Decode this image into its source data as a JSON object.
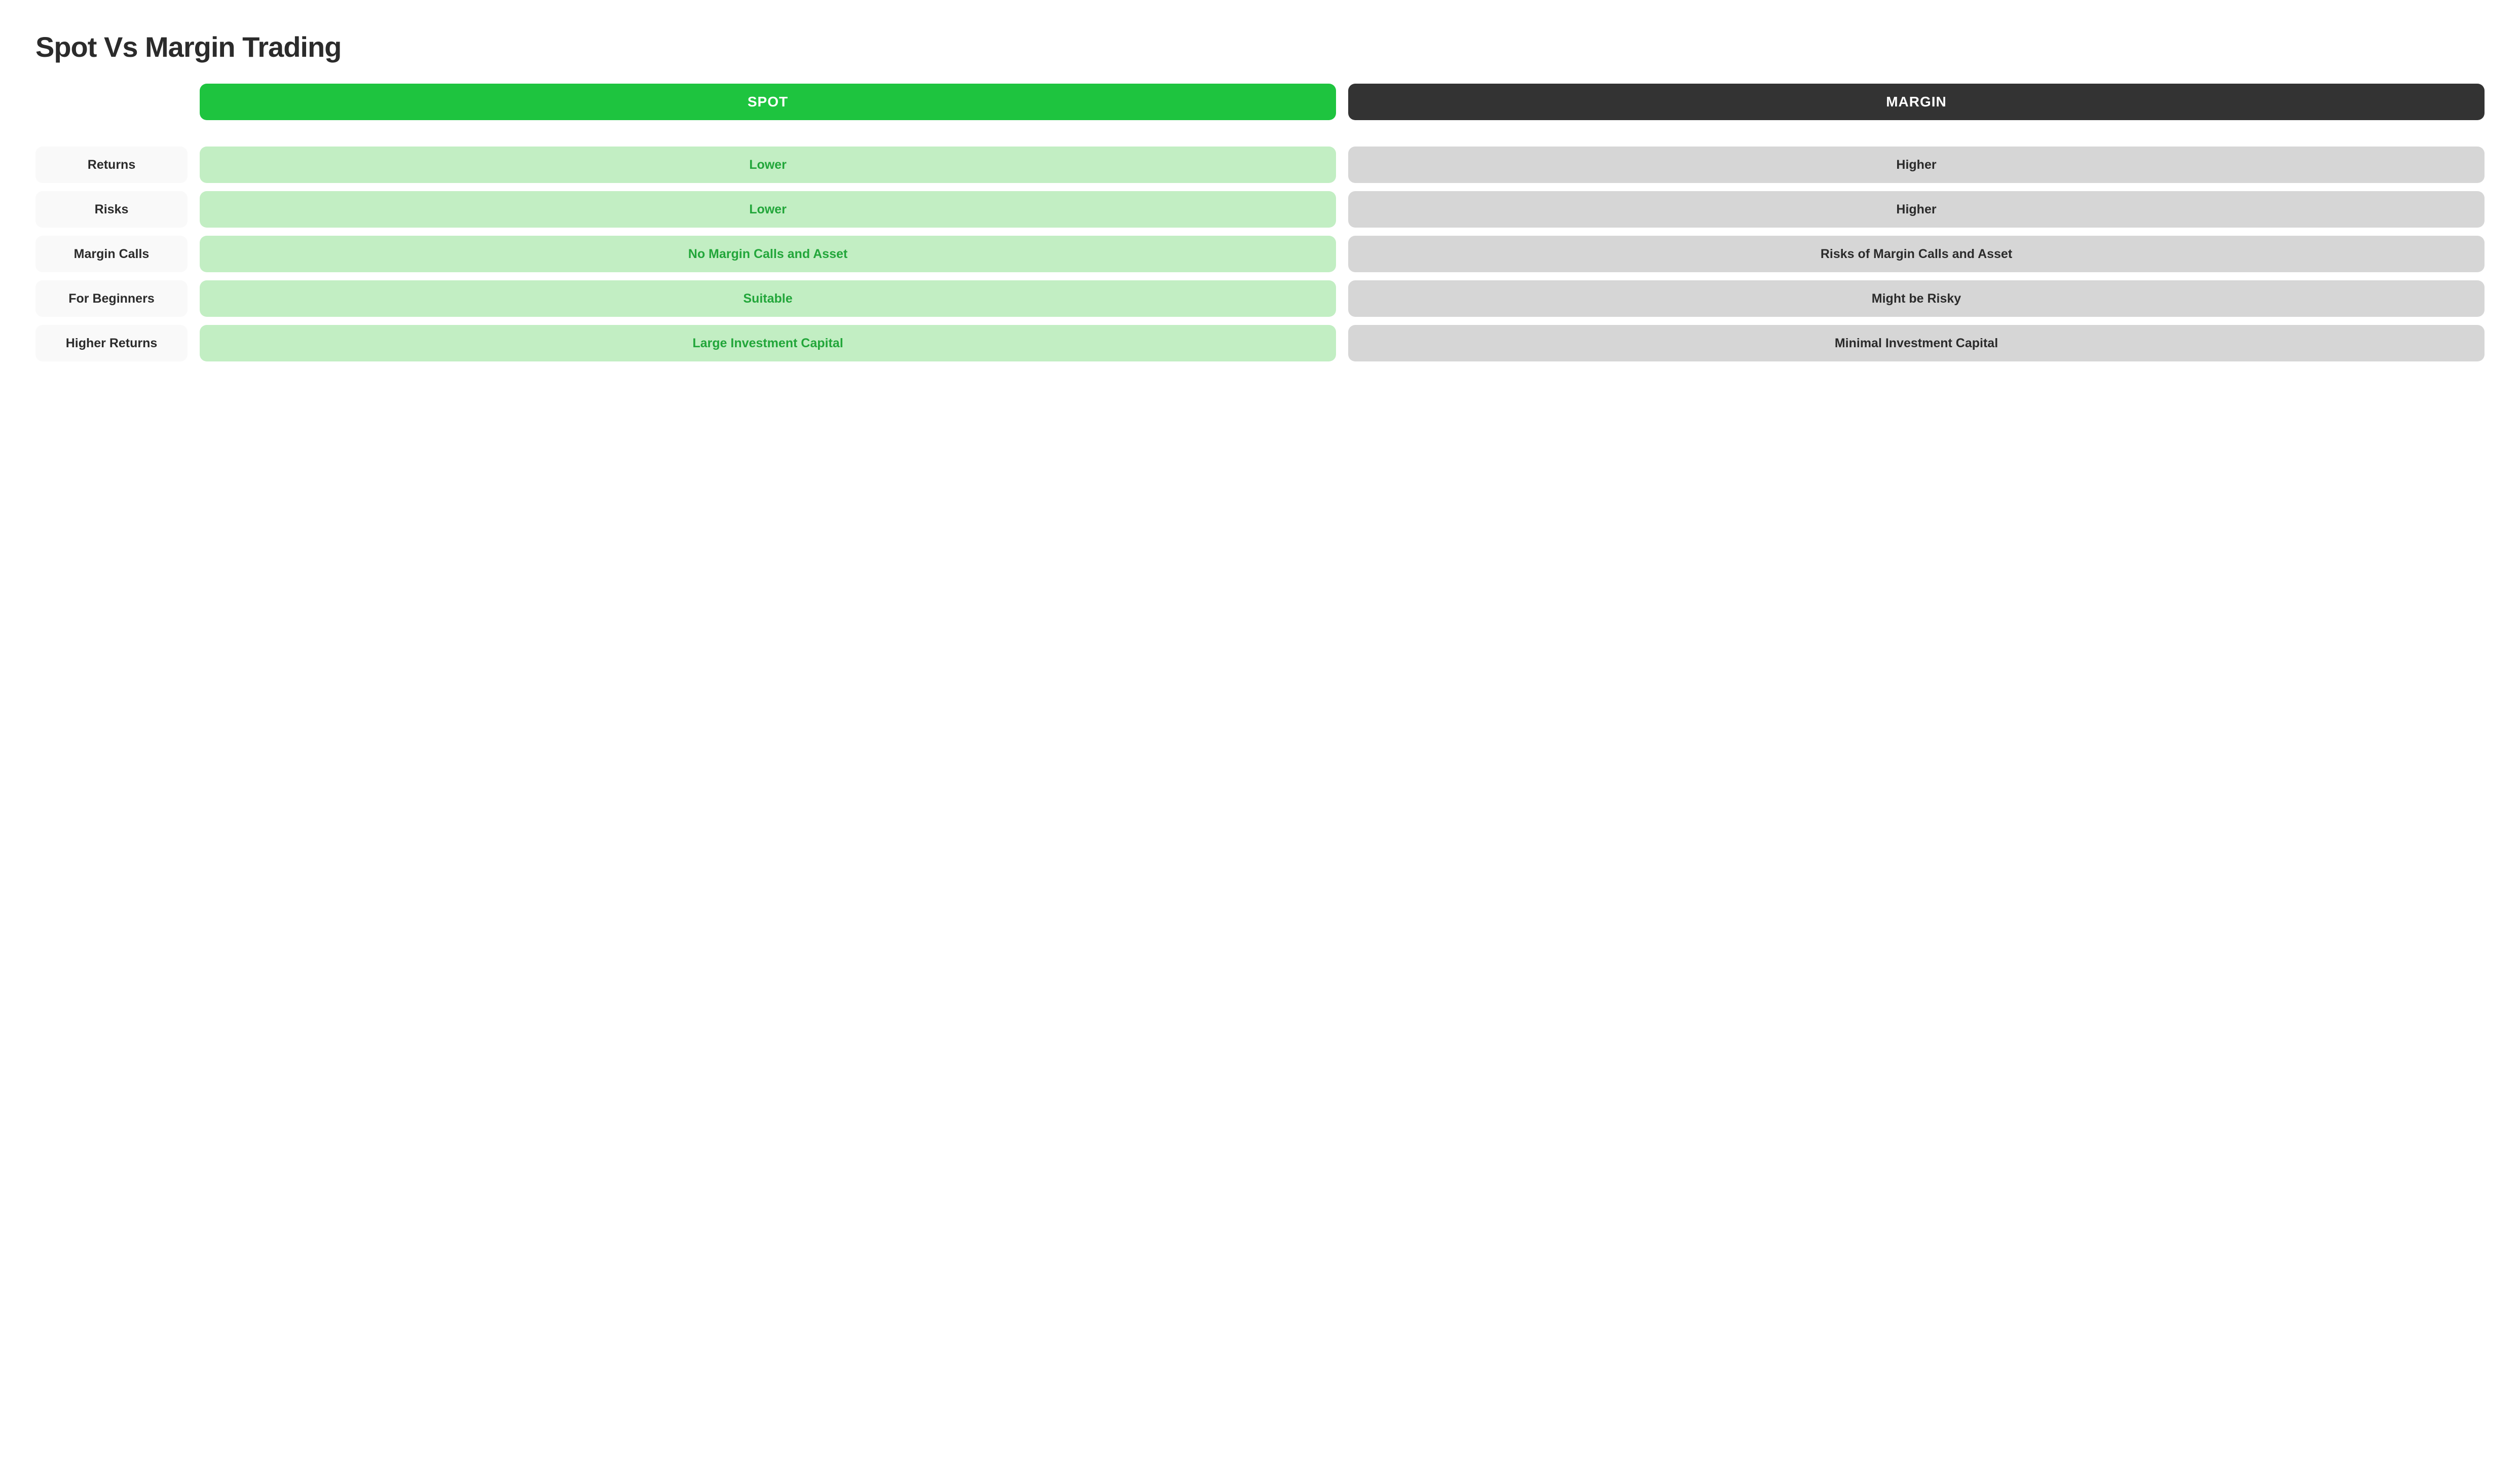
{
  "title": "Spot Vs Margin Trading",
  "columns": {
    "spot": {
      "label": "SPOT",
      "header_bg": "#1ec43f",
      "cell_bg": "#c2eec3",
      "cell_text": "#22a63a"
    },
    "margin": {
      "label": "MARGIN",
      "header_bg": "#333333",
      "cell_bg": "#d6d6d6",
      "cell_text": "#2b2b2b"
    }
  },
  "rows": [
    {
      "label": "Returns",
      "spot": "Lower",
      "margin": "Higher"
    },
    {
      "label": "Risks",
      "spot": "Lower",
      "margin": "Higher"
    },
    {
      "label": "Margin Calls",
      "spot": "No Margin Calls and Asset",
      "margin": "Risks of Margin Calls and Asset"
    },
    {
      "label": "For Beginners",
      "spot": "Suitable",
      "margin": "Might be Risky"
    },
    {
      "label": "Higher Returns",
      "spot": "Large Investment Capital",
      "margin": "Minimal Investment Capital"
    }
  ],
  "styles": {
    "row_label_bg": "#f9f9f9",
    "row_label_text": "#2b2b2b",
    "background": "#ffffff",
    "title_color": "#2b2b2b",
    "title_fontsize": 56,
    "cell_fontsize": 25,
    "header_fontsize": 28,
    "border_radius": 14
  }
}
